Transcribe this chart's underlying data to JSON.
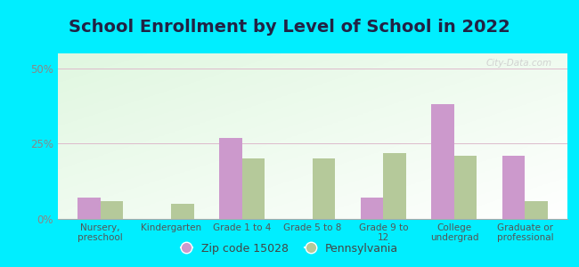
{
  "title": "School Enrollment by Level of School in 2022",
  "categories": [
    "Nursery,\npreschool",
    "Kindergarten",
    "Grade 1 to 4",
    "Grade 5 to 8",
    "Grade 9 to\n12",
    "College\nundergrad",
    "Graduate or\nprofessional"
  ],
  "zip_values": [
    7,
    0,
    27,
    0,
    7,
    38,
    21
  ],
  "pa_values": [
    6,
    5,
    20,
    20,
    22,
    21,
    6
  ],
  "zip_color": "#cc99cc",
  "pa_color": "#b5c99a",
  "background_outer": "#00eeff",
  "ylabel_ticks": [
    "0%",
    "25%",
    "50%"
  ],
  "ytick_vals": [
    0,
    25,
    50
  ],
  "ylim": [
    0,
    55
  ],
  "legend_label_zip": "Zip code 15028",
  "legend_label_pa": "Pennsylvania",
  "watermark": "City-Data.com",
  "title_fontsize": 14,
  "bar_width": 0.32,
  "title_color": "#222244"
}
